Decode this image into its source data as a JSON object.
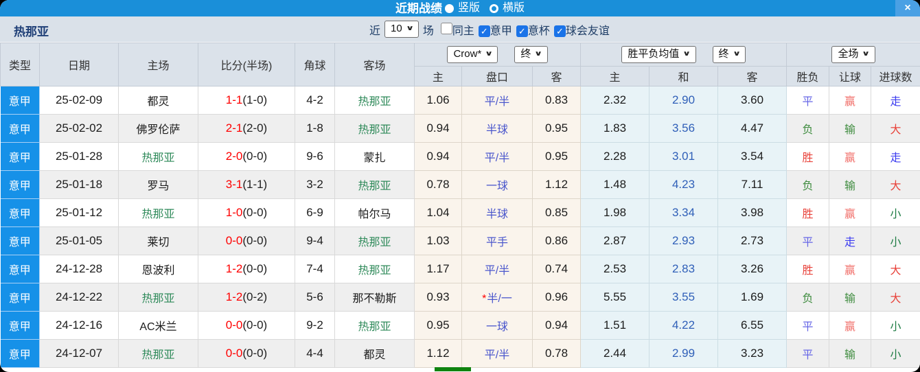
{
  "topbar": {
    "title": "近期战绩",
    "view_options": [
      {
        "label": "竖版",
        "selected": true
      },
      {
        "label": "横版",
        "selected": false
      }
    ],
    "close_label": "×"
  },
  "filterbar": {
    "team": "热那亚",
    "recent_prefix": "近",
    "recent_count": "10",
    "recent_suffix": "场",
    "filters": [
      {
        "label": "同主",
        "checked": false
      },
      {
        "label": "意甲",
        "checked": true
      },
      {
        "label": "意杯",
        "checked": true
      },
      {
        "label": "球会友谊",
        "checked": true
      }
    ]
  },
  "table": {
    "main_headers": [
      "类型",
      "日期",
      "主场",
      "比分(半场)",
      "角球",
      "客场"
    ],
    "odds_groups": [
      {
        "name": "crow",
        "selects": [
          "Crow*",
          "终"
        ]
      },
      {
        "name": "avg",
        "selects": [
          "胜平负均值",
          "终"
        ]
      },
      {
        "name": "full",
        "selects": [
          "全场"
        ]
      }
    ],
    "sub_headers": [
      "主",
      "盘口",
      "客",
      "主",
      "和",
      "客",
      "胜负",
      "让球",
      "进球数"
    ],
    "rows": [
      {
        "league": "意甲",
        "date": "25-02-09",
        "home": {
          "name": "都灵",
          "focus": false
        },
        "score": "1-1",
        "half": "(1-0)",
        "corners": "4-2",
        "away": {
          "name": "热那亚",
          "focus": true
        },
        "crow_home": "1.06",
        "handicap": {
          "star": false,
          "text": "平/半"
        },
        "crow_away": "0.83",
        "avg_home": "2.32",
        "avg_draw": "2.90",
        "avg_away": "3.60",
        "outcome": {
          "text": "平",
          "color": "violet"
        },
        "handicap_outcome": {
          "text": "赢",
          "color": "salmon"
        },
        "goals_outcome": {
          "text": "走",
          "color": "blue"
        }
      },
      {
        "league": "意甲",
        "date": "25-02-02",
        "home": {
          "name": "佛罗伦萨",
          "focus": false
        },
        "score": "2-1",
        "half": "(2-0)",
        "corners": "1-8",
        "away": {
          "name": "热那亚",
          "focus": true
        },
        "crow_home": "0.94",
        "handicap": {
          "star": false,
          "text": "半球"
        },
        "crow_away": "0.95",
        "avg_home": "1.83",
        "avg_draw": "3.56",
        "avg_away": "4.47",
        "outcome": {
          "text": "负",
          "color": "green"
        },
        "handicap_outcome": {
          "text": "输",
          "color": "green"
        },
        "goals_outcome": {
          "text": "大",
          "color": "red"
        }
      },
      {
        "league": "意甲",
        "date": "25-01-28",
        "home": {
          "name": "热那亚",
          "focus": true
        },
        "score": "2-0",
        "half": "(0-0)",
        "corners": "9-6",
        "away": {
          "name": "蒙扎",
          "focus": false
        },
        "crow_home": "0.94",
        "handicap": {
          "star": false,
          "text": "平/半"
        },
        "crow_away": "0.95",
        "avg_home": "2.28",
        "avg_draw": "3.01",
        "avg_away": "3.54",
        "outcome": {
          "text": "胜",
          "color": "red"
        },
        "handicap_outcome": {
          "text": "赢",
          "color": "salmon"
        },
        "goals_outcome": {
          "text": "走",
          "color": "blue"
        }
      },
      {
        "league": "意甲",
        "date": "25-01-18",
        "home": {
          "name": "罗马",
          "focus": false
        },
        "score": "3-1",
        "half": "(1-1)",
        "corners": "3-2",
        "away": {
          "name": "热那亚",
          "focus": true
        },
        "crow_home": "0.78",
        "handicap": {
          "star": false,
          "text": "一球"
        },
        "crow_away": "1.12",
        "avg_home": "1.48",
        "avg_draw": "4.23",
        "avg_away": "7.11",
        "outcome": {
          "text": "负",
          "color": "green"
        },
        "handicap_outcome": {
          "text": "输",
          "color": "green"
        },
        "goals_outcome": {
          "text": "大",
          "color": "red"
        }
      },
      {
        "league": "意甲",
        "date": "25-01-12",
        "home": {
          "name": "热那亚",
          "focus": true
        },
        "score": "1-0",
        "half": "(0-0)",
        "corners": "6-9",
        "away": {
          "name": "帕尔马",
          "focus": false
        },
        "crow_home": "1.04",
        "handicap": {
          "star": false,
          "text": "半球"
        },
        "crow_away": "0.85",
        "avg_home": "1.98",
        "avg_draw": "3.34",
        "avg_away": "3.98",
        "outcome": {
          "text": "胜",
          "color": "red"
        },
        "handicap_outcome": {
          "text": "赢",
          "color": "salmon"
        },
        "goals_outcome": {
          "text": "小",
          "color": "deepgreen"
        }
      },
      {
        "league": "意甲",
        "date": "25-01-05",
        "home": {
          "name": "莱切",
          "focus": false
        },
        "score": "0-0",
        "half": "(0-0)",
        "corners": "9-4",
        "away": {
          "name": "热那亚",
          "focus": true
        },
        "crow_home": "1.03",
        "handicap": {
          "star": false,
          "text": "平手"
        },
        "crow_away": "0.86",
        "avg_home": "2.87",
        "avg_draw": "2.93",
        "avg_away": "2.73",
        "outcome": {
          "text": "平",
          "color": "violet"
        },
        "handicap_outcome": {
          "text": "走",
          "color": "blue"
        },
        "goals_outcome": {
          "text": "小",
          "color": "deepgreen"
        }
      },
      {
        "league": "意甲",
        "date": "24-12-28",
        "home": {
          "name": "恩波利",
          "focus": false
        },
        "score": "1-2",
        "half": "(0-0)",
        "corners": "7-4",
        "away": {
          "name": "热那亚",
          "focus": true
        },
        "crow_home": "1.17",
        "handicap": {
          "star": false,
          "text": "平/半"
        },
        "crow_away": "0.74",
        "avg_home": "2.53",
        "avg_draw": "2.83",
        "avg_away": "3.26",
        "outcome": {
          "text": "胜",
          "color": "red"
        },
        "handicap_outcome": {
          "text": "赢",
          "color": "salmon"
        },
        "goals_outcome": {
          "text": "大",
          "color": "red"
        }
      },
      {
        "league": "意甲",
        "date": "24-12-22",
        "home": {
          "name": "热那亚",
          "focus": true
        },
        "score": "1-2",
        "half": "(0-2)",
        "corners": "5-6",
        "away": {
          "name": "那不勒斯",
          "focus": false
        },
        "crow_home": "0.93",
        "handicap": {
          "star": true,
          "text": "半/一"
        },
        "crow_away": "0.96",
        "avg_home": "5.55",
        "avg_draw": "3.55",
        "avg_away": "1.69",
        "outcome": {
          "text": "负",
          "color": "green"
        },
        "handicap_outcome": {
          "text": "输",
          "color": "green"
        },
        "goals_outcome": {
          "text": "大",
          "color": "red"
        }
      },
      {
        "league": "意甲",
        "date": "24-12-16",
        "home": {
          "name": "AC米兰",
          "focus": false
        },
        "score": "0-0",
        "half": "(0-0)",
        "corners": "9-2",
        "away": {
          "name": "热那亚",
          "focus": true
        },
        "crow_home": "0.95",
        "handicap": {
          "star": false,
          "text": "一球"
        },
        "crow_away": "0.94",
        "avg_home": "1.51",
        "avg_draw": "4.22",
        "avg_away": "6.55",
        "outcome": {
          "text": "平",
          "color": "violet"
        },
        "handicap_outcome": {
          "text": "赢",
          "color": "salmon"
        },
        "goals_outcome": {
          "text": "小",
          "color": "deepgreen"
        }
      },
      {
        "league": "意甲",
        "date": "24-12-07",
        "home": {
          "name": "热那亚",
          "focus": true
        },
        "score": "0-0",
        "half": "(0-0)",
        "corners": "4-4",
        "away": {
          "name": "都灵",
          "focus": false
        },
        "crow_home": "1.12",
        "handicap": {
          "star": false,
          "text": "平/半"
        },
        "crow_away": "0.78",
        "avg_home": "2.44",
        "avg_draw": "2.99",
        "avg_away": "3.23",
        "outcome": {
          "text": "平",
          "color": "violet"
        },
        "handicap_outcome": {
          "text": "输",
          "color": "green"
        },
        "goals_outcome": {
          "text": "小",
          "color": "deepgreen"
        }
      }
    ]
  },
  "palette": {
    "red": "#e8423a",
    "salmon": "#f1716c",
    "violet": "#6565e6",
    "blue": "#3a3af0",
    "green": "#3f8c3f",
    "deepgreen": "#1e7c44",
    "focus_team": "#2f8a5a",
    "score_red": "#fe0000",
    "handicap": "#4a56cc",
    "draw_odds": "#2f5fb8",
    "league_bg": "#1691e8",
    "topbar_bg": "#1a8fd9",
    "close_btn_bg": "#4aa0e4",
    "checkbox_on": "#1a73e8",
    "green_bar": "#0f830f"
  }
}
